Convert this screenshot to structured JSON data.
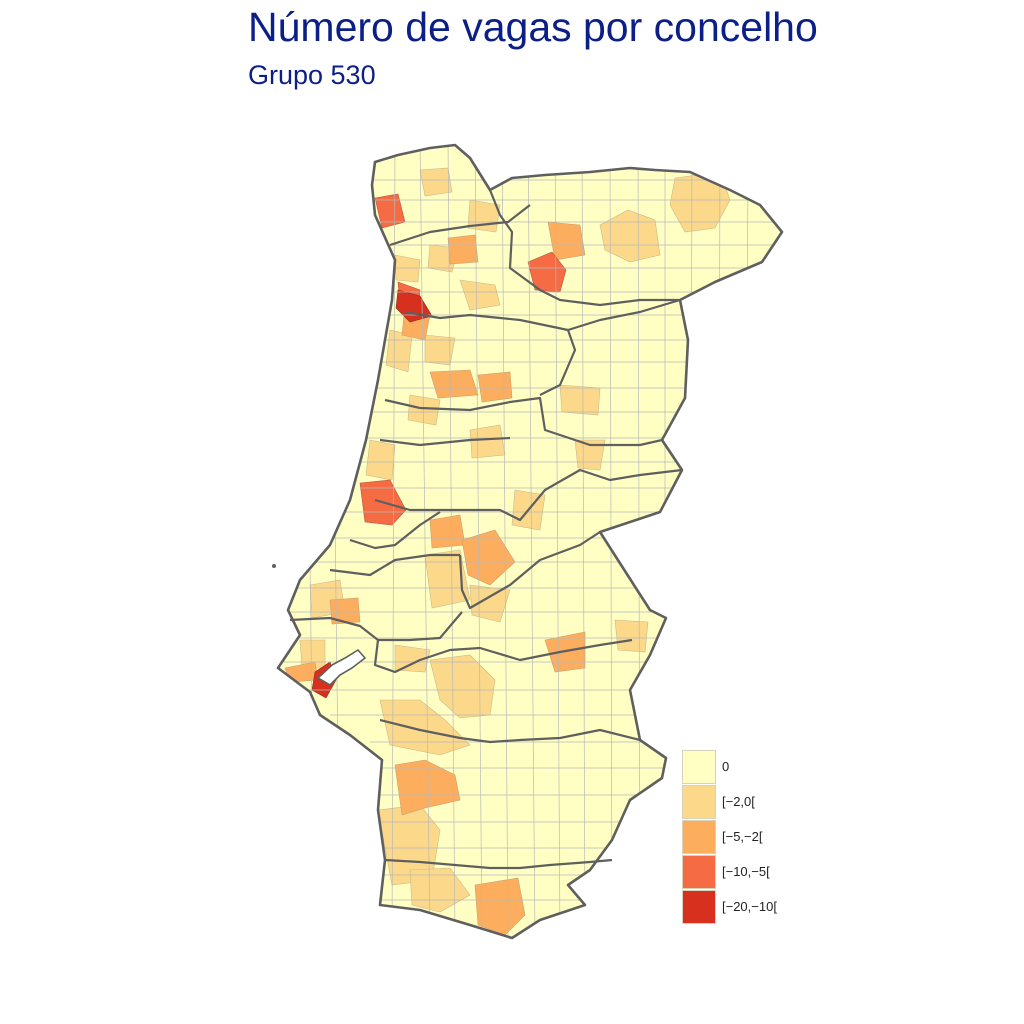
{
  "map": {
    "title": "Número de vagas por concelho",
    "subtitle": "Grupo 530",
    "region": "Portugal (continental)",
    "colors": {
      "zero": "#ffffc4",
      "c2": "#fcd98a",
      "c5": "#fcae5e",
      "c10": "#f56b43",
      "c20": "#d7301f",
      "border": "#5f5f5f",
      "inner_border": "#b8b8b8",
      "water": "#ffffff"
    },
    "legend": [
      {
        "label": "0",
        "color": "#ffffc4"
      },
      {
        "label": "[−2,0[",
        "color": "#fcd98a"
      },
      {
        "label": "[−5,−2[",
        "color": "#fcae5e"
      },
      {
        "label": "[−10,−5[",
        "color": "#f56b43"
      },
      {
        "label": "[−20,−10[",
        "color": "#d7301f"
      }
    ]
  }
}
